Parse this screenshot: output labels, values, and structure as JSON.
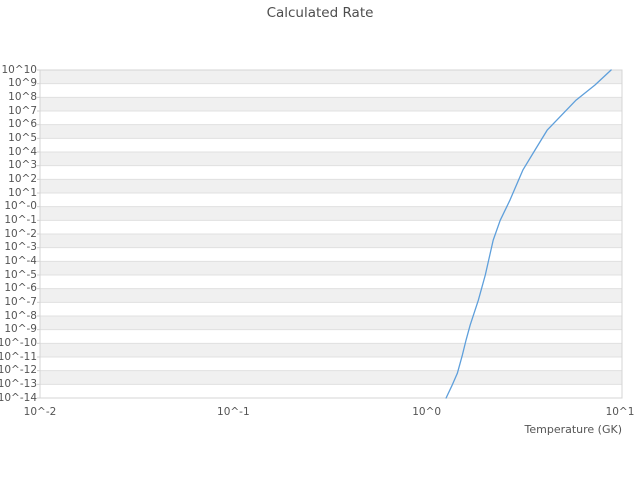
{
  "window": {
    "background": "#ffffff"
  },
  "colors": {
    "line": "#5e9fdb",
    "band_gray": "#f0f0f0",
    "band_white": "#ffffff",
    "gridline": "#e0e0e0",
    "plot_border": "#d4d4d4",
    "tick_stub": "#d0d0d0",
    "tick_text": "#555555",
    "title_text": "#4d4d4d"
  },
  "chart_data": {
    "type": "line",
    "title": "Calculated Rate",
    "xlabel": "Temperature (GK)",
    "ylabel": "",
    "x_scale": "log",
    "y_scale": "log",
    "xlim_log": [
      -2,
      1.01
    ],
    "ylim_log": [
      -14,
      10
    ],
    "x_tick_exponents": [
      -2,
      -1,
      0,
      1
    ],
    "x_tick_labels": [
      "10^-2",
      "10^-1",
      "10^0",
      "10^1"
    ],
    "y_tick_exponents": [
      10,
      9,
      8,
      7,
      6,
      5,
      4,
      3,
      2,
      1,
      0,
      -1,
      -2,
      -3,
      -4,
      -5,
      -6,
      -7,
      -8,
      -9,
      -10,
      -11,
      -12,
      -13,
      -14
    ],
    "y_tick_labels": [
      "10^10",
      "10^9",
      "10^8",
      "10^7",
      "10^6",
      "10^5",
      "10^4",
      "10^3",
      "10^2",
      "10^1",
      "10^-0",
      "10^-1",
      "10^-2",
      "10^-3",
      "10^-4",
      "10^-5",
      "10^-6",
      "10^-7",
      "10^-8",
      "10^-9",
      "10^-10",
      "10^-11",
      "10^-12",
      "10^-13",
      "10^-14"
    ],
    "grid": "horizontal-bands-alternating",
    "legend": "none",
    "series": [
      {
        "name": "calculated-rate",
        "color": "#5e9fdb",
        "points": [
          {
            "T_GK": 1.26,
            "log10_rate": -14.0
          },
          {
            "T_GK": 1.35,
            "log10_rate": -13.1
          },
          {
            "T_GK": 1.44,
            "log10_rate": -12.2
          },
          {
            "T_GK": 1.53,
            "log10_rate": -10.85
          },
          {
            "T_GK": 1.6,
            "log10_rate": -9.75
          },
          {
            "T_GK": 1.68,
            "log10_rate": -8.65
          },
          {
            "T_GK": 1.85,
            "log10_rate": -6.85
          },
          {
            "T_GK": 2.01,
            "log10_rate": -5.0
          },
          {
            "T_GK": 2.21,
            "log10_rate": -2.45
          },
          {
            "T_GK": 2.4,
            "log10_rate": -1.0
          },
          {
            "T_GK": 2.7,
            "log10_rate": 0.5
          },
          {
            "T_GK": 3.15,
            "log10_rate": 2.7
          },
          {
            "T_GK": 3.64,
            "log10_rate": 4.15
          },
          {
            "T_GK": 4.2,
            "log10_rate": 5.6
          },
          {
            "T_GK": 5.93,
            "log10_rate": 7.8
          },
          {
            "T_GK": 7.43,
            "log10_rate": 8.9
          },
          {
            "T_GK": 9.0,
            "log10_rate": 10.0
          }
        ]
      }
    ]
  }
}
